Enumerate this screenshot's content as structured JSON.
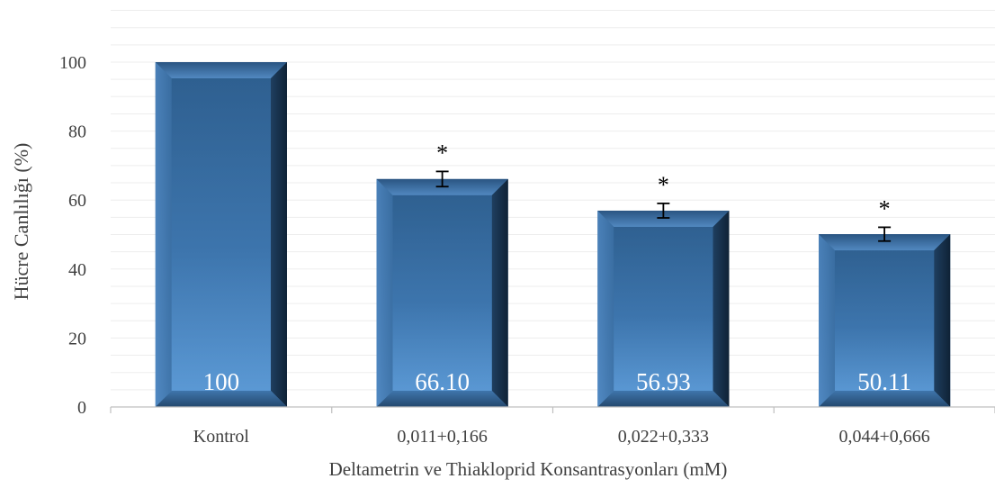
{
  "chart_data": {
    "type": "bar",
    "title": "",
    "xlabel": "Deltametrin  ve  Thiakloprid  Konsantrasyonları  (mM)",
    "ylabel": "Hücre Canlılığı (%)",
    "ylim": [
      0,
      100
    ],
    "yticks": [
      0,
      20,
      40,
      60,
      80,
      100
    ],
    "categories": [
      "Kontrol",
      "0,011+0,166",
      "0,022+0,333",
      "0,044+0,666"
    ],
    "values": [
      100,
      66.1,
      56.93,
      50.11
    ],
    "value_labels": [
      "100",
      "66.10",
      "56.93",
      "50.11"
    ],
    "error": [
      0,
      2.2,
      2.1,
      2.0
    ],
    "significance": [
      "",
      "*",
      "*",
      "*"
    ],
    "grid": true,
    "bar_color": "#3f72a6"
  }
}
